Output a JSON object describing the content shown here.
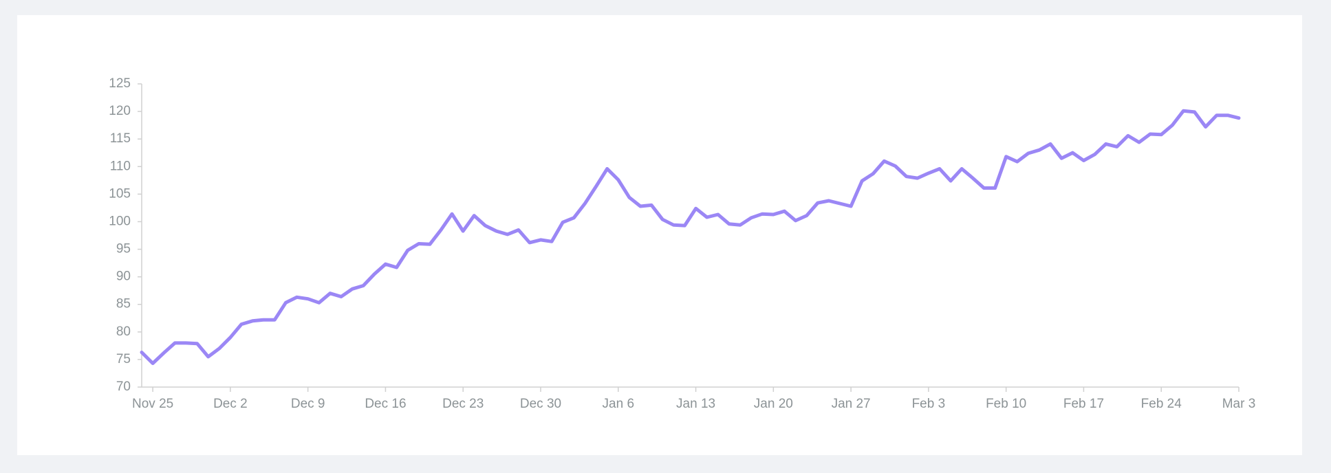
{
  "chart_data": {
    "type": "line",
    "categories": [
      null,
      "Nov 25",
      null,
      null,
      null,
      null,
      null,
      null,
      "Dec 2",
      null,
      null,
      null,
      null,
      null,
      null,
      "Dec 9",
      null,
      null,
      null,
      null,
      null,
      null,
      "Dec 16",
      null,
      null,
      null,
      null,
      null,
      null,
      "Dec 23",
      null,
      null,
      null,
      null,
      null,
      null,
      "Dec 30",
      null,
      null,
      null,
      null,
      null,
      null,
      "Jan 6",
      null,
      null,
      null,
      null,
      null,
      null,
      "Jan 13",
      null,
      null,
      null,
      null,
      null,
      null,
      "Jan 20",
      null,
      null,
      null,
      null,
      null,
      null,
      "Jan 27",
      null,
      null,
      null,
      null,
      null,
      null,
      "Feb 3",
      null,
      null,
      null,
      null,
      null,
      null,
      "Feb 10",
      null,
      null,
      null,
      null,
      null,
      null,
      "Feb 17",
      null,
      null,
      null,
      null,
      null,
      null,
      "Feb 24",
      null,
      null,
      null,
      null,
      null,
      null,
      "Mar 3"
    ],
    "series": [
      {
        "color": "#9b87f5",
        "values": [
          76.3,
          74.3,
          76.2,
          78,
          78,
          77.9,
          75.5,
          77,
          79,
          81.4,
          82,
          82.2,
          82.2,
          85.3,
          86.3,
          86,
          85.3,
          87,
          86.4,
          87.8,
          88.4,
          90.5,
          92.3,
          91.7,
          94.8,
          96,
          95.9,
          98.5,
          101.4,
          98.3,
          101.1,
          99.3,
          98.3,
          97.7,
          98.5,
          96.2,
          96.7,
          96.4,
          99.9,
          100.7,
          103.3,
          106.4,
          109.6,
          107.6,
          104.4,
          102.8,
          103,
          100.4,
          99.4,
          99.3,
          102.4,
          100.8,
          101.3,
          99.6,
          99.4,
          100.7,
          101.4,
          101.3,
          101.9,
          100.2,
          101.1,
          103.4,
          103.8,
          103.3,
          102.8,
          107.4,
          108.7,
          111,
          110.1,
          108.2,
          107.9,
          108.8,
          109.6,
          107.4,
          109.6,
          107.9,
          106.1,
          106.1,
          111.8,
          110.9,
          112.4,
          113,
          114.1,
          111.5,
          112.5,
          111.1,
          112.2,
          114.1,
          113.6,
          115.6,
          114.4,
          115.9,
          115.8,
          117.5,
          120.1,
          119.9,
          117.2,
          119.3,
          119.3,
          118.8
        ]
      }
    ],
    "ylim": [
      70,
      125
    ],
    "yticks": [
      70,
      75,
      80,
      85,
      90,
      95,
      100,
      105,
      110,
      115,
      120,
      125
    ],
    "grid": false
  }
}
